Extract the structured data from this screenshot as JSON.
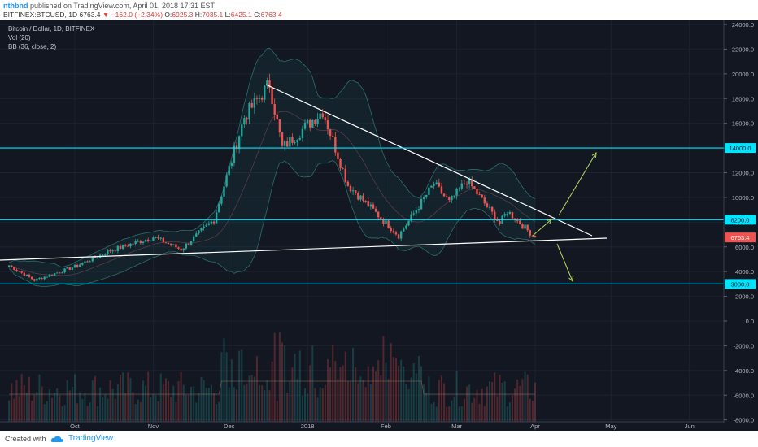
{
  "header": {
    "user": "nthbnd",
    "published": "published on TradingView.com, April 01, 2018 17:31 EST",
    "symbol": "BITFINEX:BTCUSD, 1D",
    "last": "6763.4",
    "change": "−162.0 (−2.34%)",
    "o_label": "O:",
    "o_val": "6925.3",
    "h_label": "H:",
    "h_val": "7035.1",
    "l_label": "L:",
    "l_val": "6425.1",
    "c_label": "C:",
    "c_val": "6763.4"
  },
  "legend": {
    "title": "Bitcoin / Dollar, 1D, BITFINEX",
    "vol": "Vol (20)",
    "bb": "BB (36, close, 2)"
  },
  "footer": {
    "created": "Created with",
    "brand": "TradingView"
  },
  "colors": {
    "background": "#131722",
    "up": "#26a69a",
    "down": "#ef5350",
    "horizontal_line": "#00e5ff",
    "arrow": "#b5d95f",
    "trend_line": "#ffffff"
  },
  "chart_data": {
    "type": "candlestick",
    "symbol": "BITFINEX:BTCUSD",
    "interval": "1D",
    "y_ticks": [
      "24000.0",
      "22000.0",
      "20000.0",
      "18000.0",
      "16000.0",
      "14000.0",
      "12000.0",
      "10000.0",
      "8000.0",
      "6000.0",
      "4000.0",
      "2000.0",
      "0.0",
      "-2000.0",
      "-4000.0",
      "-6000.0",
      "-8000.0"
    ],
    "x_ticks": [
      "Oct",
      "Nov",
      "Dec",
      "2018",
      "Feb",
      "Mar",
      "Apr",
      "May",
      "Jun"
    ],
    "price_range": [
      -8000,
      24000
    ],
    "horizontal_levels": [
      {
        "label": "14000.0",
        "value": 14000
      },
      {
        "label": "8200.0",
        "value": 8200
      },
      {
        "label": "3000.0",
        "value": 3000
      }
    ],
    "last_price": {
      "label": "6763.4",
      "value": 6763.4
    },
    "keypoints": [
      {
        "date": "2017-09-05",
        "close": 4500
      },
      {
        "date": "2017-09-15",
        "close": 3300
      },
      {
        "date": "2017-10-01",
        "close": 4400
      },
      {
        "date": "2017-10-15",
        "close": 5700
      },
      {
        "date": "2017-11-01",
        "close": 6800
      },
      {
        "date": "2017-11-12",
        "close": 5800
      },
      {
        "date": "2017-11-25",
        "close": 8200
      },
      {
        "date": "2017-12-07",
        "close": 16500
      },
      {
        "date": "2017-12-17",
        "close": 19200
      },
      {
        "date": "2017-12-22",
        "close": 14000
      },
      {
        "date": "2018-01-07",
        "close": 17000
      },
      {
        "date": "2018-01-17",
        "close": 11000
      },
      {
        "date": "2018-02-06",
        "close": 6900
      },
      {
        "date": "2018-02-20",
        "close": 11100
      },
      {
        "date": "2018-02-26",
        "close": 9600
      },
      {
        "date": "2018-03-05",
        "close": 11400
      },
      {
        "date": "2018-03-18",
        "close": 7900
      },
      {
        "date": "2018-03-21",
        "close": 8900
      },
      {
        "date": "2018-04-01",
        "close": 6763.4
      }
    ]
  }
}
